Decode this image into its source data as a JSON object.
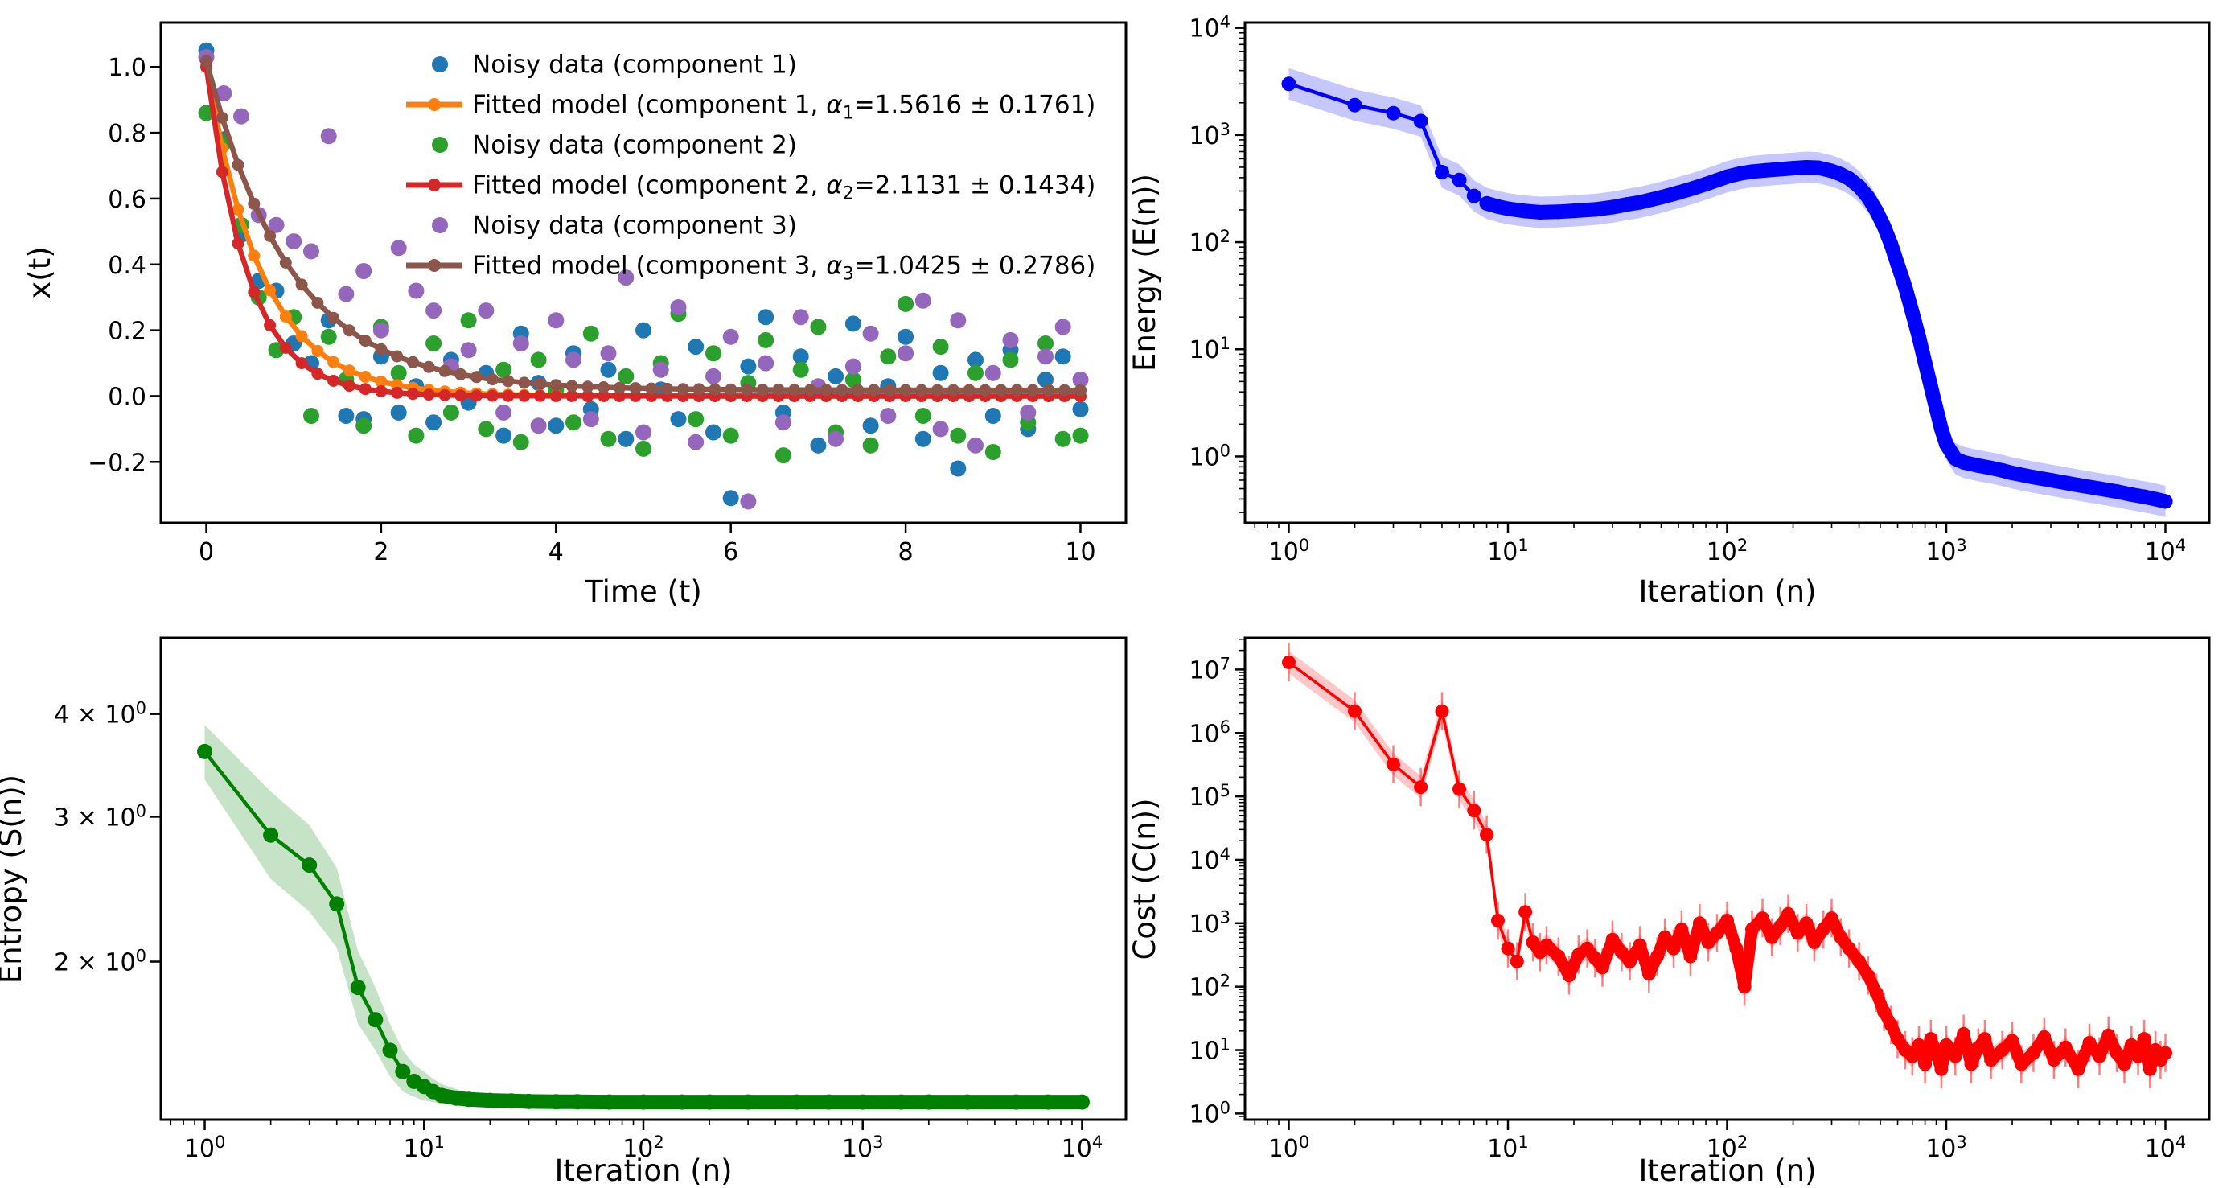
{
  "figure": {
    "background": "#ffffff"
  },
  "chart_data": [
    {
      "id": "fit",
      "type": "scatter",
      "title": "",
      "xlabel": "Time (t)",
      "ylabel": "x(t)",
      "xscale": "linear",
      "yscale": "linear",
      "xlim": [
        -0.52,
        10.52
      ],
      "ylim": [
        -0.385,
        1.135
      ],
      "grid": false,
      "minor": "",
      "xticks": [
        {
          "v": 0,
          "l": "0"
        },
        {
          "v": 2,
          "l": "2"
        },
        {
          "v": 4,
          "l": "4"
        },
        {
          "v": 6,
          "l": "6"
        },
        {
          "v": 8,
          "l": "8"
        },
        {
          "v": 10,
          "l": "10"
        }
      ],
      "yticks": [
        {
          "v": -0.2,
          "l": "−0.2"
        },
        {
          "v": 0.0,
          "l": "0.0"
        },
        {
          "v": 0.2,
          "l": "0.2"
        },
        {
          "v": 0.4,
          "l": "0.4"
        },
        {
          "v": 0.6,
          "l": "0.6"
        },
        {
          "v": 0.8,
          "l": "0.8"
        },
        {
          "v": 1.0,
          "l": "1.0"
        }
      ],
      "t_values": [
        0,
        0.2,
        0.4,
        0.6,
        0.8,
        1,
        1.2,
        1.4,
        1.6,
        1.8,
        2,
        2.2,
        2.4,
        2.6,
        2.8,
        3,
        3.2,
        3.4,
        3.6,
        3.8,
        4,
        4.2,
        4.4,
        4.6,
        4.8,
        5,
        5.2,
        5.4,
        5.6,
        5.8,
        6,
        6.2,
        6.4,
        6.6,
        6.8,
        7,
        7.2,
        7.4,
        7.6,
        7.8,
        8,
        8.2,
        8.4,
        8.6,
        8.8,
        9,
        9.2,
        9.4,
        9.6,
        9.8,
        10
      ],
      "series": [
        {
          "name": "Noisy data (component 1)",
          "kind": "scatter",
          "color": "#1f77b4",
          "y": [
            1.05,
            0.78,
            0.49,
            0.35,
            0.32,
            0.16,
            0.1,
            0.23,
            -0.06,
            -0.07,
            0.12,
            -0.05,
            0.03,
            -0.08,
            0.11,
            -0.02,
            0.07,
            -0.12,
            0.19,
            0.04,
            -0.09,
            0.13,
            -0.04,
            0.08,
            -0.13,
            0.2,
            0.02,
            -0.07,
            0.15,
            -0.11,
            -0.31,
            0.09,
            0.24,
            -0.05,
            0.12,
            -0.15,
            0.06,
            0.22,
            -0.09,
            0.03,
            0.18,
            -0.13,
            0.07,
            -0.22,
            0.11,
            -0.06,
            0.14,
            -0.1,
            0.05,
            0.12,
            -0.04
          ]
        },
        {
          "name": "Noisy data (component 2)",
          "kind": "scatter",
          "color": "#2ca02c",
          "y": [
            0.86,
            0.77,
            0.52,
            0.3,
            0.14,
            0.24,
            -0.06,
            0.18,
            0.05,
            -0.09,
            0.21,
            0.07,
            -0.12,
            0.16,
            -0.05,
            0.23,
            -0.1,
            0.08,
            -0.14,
            0.11,
            0.02,
            -0.08,
            0.19,
            -0.13,
            0.06,
            -0.16,
            0.1,
            0.25,
            -0.07,
            0.13,
            -0.12,
            0.04,
            0.17,
            -0.18,
            0.08,
            0.21,
            -0.11,
            0.05,
            -0.15,
            0.12,
            0.28,
            -0.06,
            0.15,
            -0.12,
            0.07,
            -0.17,
            0.11,
            -0.08,
            0.16,
            -0.13,
            -0.12
          ]
        },
        {
          "name": "Noisy data (component 3)",
          "kind": "scatter",
          "color": "#9467bd",
          "y": [
            1.03,
            0.92,
            0.85,
            0.55,
            0.52,
            0.47,
            0.44,
            0.79,
            0.31,
            0.38,
            0.2,
            0.45,
            0.32,
            0.26,
            0.09,
            0.14,
            0.26,
            -0.05,
            0.16,
            -0.09,
            0.23,
            0.11,
            -0.07,
            0.13,
            0.36,
            -0.11,
            0.08,
            0.27,
            -0.14,
            0.06,
            0.18,
            -0.32,
            0.1,
            -0.08,
            0.24,
            0.03,
            -0.13,
            0.09,
            0.19,
            -0.06,
            0.13,
            0.29,
            -0.1,
            0.23,
            -0.15,
            0.07,
            0.17,
            -0.05,
            0.12,
            0.21,
            0.05
          ]
        },
        {
          "name": "Fitted model (component 1, α_1=1.5616 ± 0.1761)",
          "kind": "fit",
          "color": "#ff7f0e",
          "alpha": 1.5616,
          "alpha_err": 0.1761,
          "offset": 0.0,
          "t_range": [
            0,
            10
          ],
          "n_points": 56
        },
        {
          "name": "Fitted model (component 2, α_2=2.1131 ± 0.1434)",
          "kind": "fit",
          "color": "#d62728",
          "alpha": 2.1131,
          "alpha_err": 0.1434,
          "offset": 0.0,
          "t_range": [
            0,
            10
          ],
          "n_points": 56
        },
        {
          "name": "Fitted model (component 3, α_3=1.0425 ± 0.2786)",
          "kind": "fit",
          "color": "#8c564b",
          "alpha": 1.0425,
          "alpha_err": 0.2786,
          "offset": 0.018,
          "t_range": [
            0,
            10
          ],
          "n_points": 56
        }
      ],
      "legend": {
        "location": "upper right",
        "entries": [
          {
            "handle": "marker",
            "color": "#1f77b4",
            "label": "Noisy data (component 1)"
          },
          {
            "handle": "line",
            "color": "#ff7f0e",
            "label": "Fitted model (component 1, α_1=1.5616 ± 0.1761)"
          },
          {
            "handle": "marker",
            "color": "#2ca02c",
            "label": "Noisy data (component 2)"
          },
          {
            "handle": "line",
            "color": "#d62728",
            "label": "Fitted model (component 2, α_2=2.1131 ± 0.1434)"
          },
          {
            "handle": "marker",
            "color": "#9467bd",
            "label": "Noisy data (component 3)"
          },
          {
            "handle": "line",
            "color": "#8c564b",
            "label": "Fitted model (component 3, α_3=1.0425 ± 0.2786)"
          }
        ]
      }
    },
    {
      "id": "energy",
      "type": "line",
      "title": "",
      "xlabel": "Iteration (n)",
      "ylabel": "Energy (E(n))",
      "xscale": "log",
      "yscale": "log",
      "xlim": [
        0.631,
        15849
      ],
      "ylim": [
        0.24,
        11220
      ],
      "grid": false,
      "minor": "xy",
      "xticks": [
        {
          "v": 1,
          "l": "10^0"
        },
        {
          "v": 10,
          "l": "10^1"
        },
        {
          "v": 100,
          "l": "10^2"
        },
        {
          "v": 1000,
          "l": "10^3"
        },
        {
          "v": 10000,
          "l": "10^4"
        }
      ],
      "yticks": [
        {
          "v": 1,
          "l": "10^0"
        },
        {
          "v": 10,
          "l": "10^1"
        },
        {
          "v": 100,
          "l": "10^2"
        },
        {
          "v": 1000,
          "l": "10^3"
        },
        {
          "v": 10000,
          "l": "10^4"
        }
      ],
      "series": [
        {
          "name": "Energy (E(n))",
          "kind": "line",
          "color": "#0000ff",
          "band_factor": 1.4,
          "thick_from": 8,
          "lw": 4.5,
          "bead": 18,
          "ms": 9,
          "x": [
            1,
            2,
            3,
            4,
            5,
            6,
            7,
            8,
            9,
            10,
            12,
            14,
            17,
            20,
            25,
            30,
            35,
            40,
            50,
            60,
            70,
            80,
            90,
            100,
            115,
            130,
            150,
            170,
            200,
            230,
            260,
            300,
            330,
            360,
            400,
            440,
            480,
            520,
            560,
            600,
            650,
            700,
            750,
            800,
            850,
            900,
            950,
            1000,
            1100,
            1200,
            1400,
            1600,
            1800,
            2000,
            2500,
            3000,
            4000,
            5000,
            6000,
            7000,
            8000,
            9000,
            10000
          ],
          "y": [
            3000,
            1900,
            1600,
            1350,
            450,
            380,
            270,
            230,
            215,
            205,
            195,
            190,
            192,
            196,
            202,
            212,
            225,
            235,
            262,
            290,
            318,
            348,
            378,
            408,
            438,
            455,
            468,
            478,
            490,
            500,
            495,
            462,
            430,
            392,
            330,
            262,
            196,
            140,
            95,
            62,
            38,
            22,
            13,
            7.5,
            4.5,
            2.8,
            1.8,
            1.3,
            0.95,
            0.88,
            0.82,
            0.78,
            0.74,
            0.7,
            0.64,
            0.6,
            0.54,
            0.5,
            0.47,
            0.44,
            0.42,
            0.4,
            0.38
          ]
        }
      ]
    },
    {
      "id": "entropy",
      "type": "line",
      "title": "",
      "xlabel": "Iteration (n)",
      "ylabel": "Entropy (S(n))",
      "xscale": "log",
      "yscale": "log",
      "xlim": [
        0.631,
        15849
      ],
      "ylim": [
        1.285,
        4.95
      ],
      "grid": false,
      "minor": "x",
      "xticks": [
        {
          "v": 1,
          "l": "10^0"
        },
        {
          "v": 10,
          "l": "10^1"
        },
        {
          "v": 100,
          "l": "10^2"
        },
        {
          "v": 1000,
          "l": "10^3"
        },
        {
          "v": 10000,
          "l": "10^4"
        }
      ],
      "yticks": [
        {
          "v": 2,
          "l": "2 × 10^0"
        },
        {
          "v": 3,
          "l": "3 × 10^0"
        },
        {
          "v": 4,
          "l": "4 × 10^0"
        }
      ],
      "series": [
        {
          "name": "Entropy (S(n))",
          "kind": "line",
          "color": "#008000",
          "thick_from": 12,
          "lw": 4.5,
          "bead": 18,
          "ms": 9.5,
          "x": [
            1,
            2,
            3,
            4,
            5,
            6,
            7,
            8,
            9,
            10,
            11,
            12,
            14,
            16,
            20,
            25,
            30,
            40,
            50,
            70,
            100,
            150,
            200,
            300,
            500,
            700,
            1000,
            1500,
            2000,
            3000,
            5000,
            7000,
            10000
          ],
          "y": [
            3.6,
            2.85,
            2.62,
            2.35,
            1.86,
            1.7,
            1.56,
            1.47,
            1.43,
            1.41,
            1.39,
            1.375,
            1.365,
            1.36,
            1.356,
            1.354,
            1.352,
            1.351,
            1.351,
            1.35,
            1.35,
            1.35,
            1.35,
            1.35,
            1.35,
            1.35,
            1.35,
            1.35,
            1.35,
            1.35,
            1.35,
            1.35,
            1.35
          ],
          "band_upper": [
            3.88,
            3.22,
            2.93,
            2.6,
            2.06,
            1.86,
            1.68,
            1.56,
            1.5,
            1.47,
            1.44,
            1.42,
            1.4,
            1.385,
            1.375,
            1.368,
            1.362,
            1.358,
            1.357,
            1.356,
            1.355,
            1.355,
            1.355,
            1.355,
            1.354,
            1.354,
            1.354,
            1.354,
            1.354,
            1.354,
            1.354,
            1.354,
            1.354
          ],
          "band_lower": [
            3.33,
            2.52,
            2.3,
            2.08,
            1.68,
            1.56,
            1.45,
            1.39,
            1.37,
            1.355,
            1.35,
            1.343,
            1.338,
            1.336,
            1.338,
            1.34,
            1.342,
            1.344,
            1.345,
            1.344,
            1.345,
            1.345,
            1.345,
            1.345,
            1.346,
            1.346,
            1.346,
            1.346,
            1.346,
            1.346,
            1.346,
            1.346,
            1.346
          ]
        }
      ]
    },
    {
      "id": "cost",
      "type": "line",
      "title": "",
      "xlabel": "Iteration (n)",
      "ylabel": "Cost (C(n))",
      "xscale": "log",
      "yscale": "log",
      "xlim": [
        0.631,
        15849
      ],
      "ylim": [
        0.8,
        31600000
      ],
      "grid": false,
      "minor": "xy",
      "xticks": [
        {
          "v": 1,
          "l": "10^0"
        },
        {
          "v": 10,
          "l": "10^1"
        },
        {
          "v": 100,
          "l": "10^2"
        },
        {
          "v": 1000,
          "l": "10^3"
        },
        {
          "v": 10000,
          "l": "10^4"
        }
      ],
      "yticks": [
        {
          "v": 1,
          "l": "10^0"
        },
        {
          "v": 10,
          "l": "10^1"
        },
        {
          "v": 100,
          "l": "10^2"
        },
        {
          "v": 1000,
          "l": "10^3"
        },
        {
          "v": 10000,
          "l": "10^4"
        },
        {
          "v": 100000,
          "l": "10^5"
        },
        {
          "v": 1000000,
          "l": "10^6"
        },
        {
          "v": 10000000,
          "l": "10^7"
        }
      ],
      "series": [
        {
          "name": "Cost (C(n))",
          "kind": "line",
          "color": "#ff0000",
          "band_factor": 1.5,
          "err_factor": 2.0,
          "thick_from": 13,
          "lw": 3.5,
          "bead": 15,
          "ms": 8.5,
          "x": [
            1,
            2,
            3,
            4,
            5,
            6,
            7,
            8,
            9,
            10,
            11,
            12,
            13,
            14,
            15,
            17,
            19,
            21,
            23,
            25,
            27,
            30,
            33,
            36,
            40,
            44,
            48,
            52,
            57,
            62,
            68,
            75,
            82,
            90,
            100,
            110,
            120,
            130,
            145,
            160,
            175,
            190,
            210,
            230,
            250,
            275,
            300,
            330,
            360,
            400,
            440,
            480,
            520,
            560,
            600,
            650,
            700,
            750,
            800,
            850,
            900,
            950,
            1000,
            1100,
            1200,
            1300,
            1400,
            1500,
            1600,
            1800,
            2000,
            2200,
            2500,
            2800,
            3100,
            3500,
            4000,
            4500,
            5000,
            5500,
            6000,
            6500,
            7000,
            7500,
            8000,
            8500,
            9000,
            9500,
            10000
          ],
          "y": [
            13000000,
            2200000,
            320000,
            140000,
            2200000,
            130000,
            60000,
            25000,
            1100,
            400,
            250,
            1500,
            500,
            350,
            450,
            300,
            150,
            320,
            400,
            280,
            200,
            550,
            350,
            250,
            450,
            160,
            300,
            600,
            400,
            800,
            300,
            1000,
            500,
            700,
            1100,
            400,
            100,
            800,
            1200,
            600,
            900,
            1400,
            700,
            1000,
            500,
            800,
            1200,
            600,
            400,
            250,
            150,
            80,
            40,
            25,
            15,
            10,
            8,
            12,
            6,
            15,
            9,
            5,
            12,
            8,
            18,
            6,
            11,
            15,
            7,
            10,
            14,
            6,
            9,
            16,
            7,
            11,
            5,
            13,
            8,
            17,
            9,
            6,
            12,
            8,
            15,
            5,
            10,
            7,
            9
          ]
        }
      ]
    }
  ]
}
